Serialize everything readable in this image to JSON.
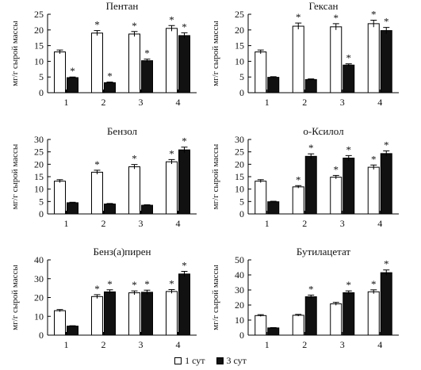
{
  "chart_data": [
    {
      "type": "bar",
      "title": "Пентан",
      "ylabel": "мг/г сырой массы",
      "ylim": [
        0,
        25
      ],
      "yticks": [
        0,
        5,
        10,
        15,
        20,
        25
      ],
      "categories": [
        "1",
        "2",
        "3",
        "4"
      ],
      "series": [
        {
          "name": "1 сут",
          "values": [
            13,
            19,
            18.7,
            20.5
          ],
          "errors": [
            0.6,
            0.8,
            0.8,
            0.9
          ],
          "marked": [
            false,
            true,
            true,
            true
          ]
        },
        {
          "name": "3 сут",
          "values": [
            4.8,
            3.2,
            10.2,
            18.2
          ],
          "errors": [
            0.2,
            0.2,
            0.5,
            0.9
          ],
          "marked": [
            true,
            true,
            true,
            true
          ]
        }
      ]
    },
    {
      "type": "bar",
      "title": "Гексан",
      "ylabel": "мг/г сырой массы",
      "ylim": [
        0,
        25
      ],
      "yticks": [
        0,
        5,
        10,
        15,
        20,
        25
      ],
      "categories": [
        "1",
        "2",
        "3",
        "4"
      ],
      "series": [
        {
          "name": "1 сут",
          "values": [
            13,
            21.2,
            21,
            22
          ],
          "errors": [
            0.6,
            1.0,
            1.0,
            1.1
          ],
          "marked": [
            false,
            true,
            true,
            true
          ]
        },
        {
          "name": "3 сут",
          "values": [
            4.9,
            4.2,
            8.8,
            19.8
          ],
          "errors": [
            0.2,
            0.2,
            0.4,
            1.0
          ],
          "marked": [
            false,
            false,
            true,
            true
          ]
        }
      ]
    },
    {
      "type": "bar",
      "title": "Бензол",
      "ylabel": "мг/г сырой массы",
      "ylim": [
        0,
        30
      ],
      "yticks": [
        0,
        5,
        10,
        15,
        20,
        25,
        30
      ],
      "categories": [
        "1",
        "2",
        "3",
        "4"
      ],
      "series": [
        {
          "name": "1 сут",
          "values": [
            13.2,
            16.8,
            19,
            21
          ],
          "errors": [
            0.6,
            0.8,
            0.9,
            0.9
          ],
          "marked": [
            false,
            true,
            true,
            true
          ]
        },
        {
          "name": "3 сут",
          "values": [
            4.5,
            4,
            3.5,
            25.8
          ],
          "errors": [
            0.2,
            0.2,
            0.2,
            1.1
          ],
          "marked": [
            false,
            false,
            false,
            true
          ]
        }
      ]
    },
    {
      "type": "bar",
      "title": "о-Ксилол",
      "ylabel": "мг/г сырой массы",
      "ylim": [
        0,
        30
      ],
      "yticks": [
        0,
        5,
        10,
        15,
        20,
        25,
        30
      ],
      "categories": [
        "1",
        "2",
        "3",
        "4"
      ],
      "series": [
        {
          "name": "1 сут",
          "values": [
            13.2,
            10.9,
            14.8,
            18.8
          ],
          "errors": [
            0.6,
            0.5,
            0.7,
            0.9
          ],
          "marked": [
            false,
            true,
            true,
            true
          ]
        },
        {
          "name": "3 сут",
          "values": [
            4.9,
            23.2,
            22.5,
            24.3
          ],
          "errors": [
            0.2,
            1.0,
            1.0,
            1.1
          ],
          "marked": [
            false,
            true,
            true,
            true
          ]
        }
      ]
    },
    {
      "type": "bar",
      "title": "Бенз(а)пирен",
      "ylabel": "мг/г сырой массы",
      "ylim": [
        0,
        40
      ],
      "yticks": [
        0,
        10,
        20,
        30,
        40
      ],
      "categories": [
        "1",
        "2",
        "3",
        "4"
      ],
      "series": [
        {
          "name": "1 сут",
          "values": [
            13,
            20.5,
            22.5,
            23.2
          ],
          "errors": [
            0.6,
            1.0,
            1.0,
            1.0
          ],
          "marked": [
            false,
            true,
            true,
            true
          ]
        },
        {
          "name": "3 сут",
          "values": [
            4.8,
            23,
            22.8,
            32.5
          ],
          "errors": [
            0.2,
            1.1,
            1.1,
            1.4
          ],
          "marked": [
            false,
            true,
            true,
            true
          ]
        }
      ]
    },
    {
      "type": "bar",
      "title": "Бутилацетат",
      "ylabel": "мг/г сырой массы",
      "ylim": [
        0,
        50
      ],
      "yticks": [
        0,
        10,
        20,
        30,
        40,
        50
      ],
      "categories": [
        "1",
        "2",
        "3",
        "4"
      ],
      "series": [
        {
          "name": "1 сут",
          "values": [
            13,
            13.2,
            20.8,
            28.8
          ],
          "errors": [
            0.6,
            0.6,
            1.0,
            1.3
          ],
          "marked": [
            false,
            false,
            false,
            true
          ]
        },
        {
          "name": "3 сут",
          "values": [
            4.8,
            25.5,
            28.2,
            41.5
          ],
          "errors": [
            0.2,
            1.1,
            1.2,
            1.8
          ],
          "marked": [
            false,
            true,
            true,
            true
          ]
        }
      ]
    }
  ],
  "legend": {
    "items": [
      {
        "label": "1 сут",
        "color": "#ffffff"
      },
      {
        "label": "3 сут",
        "color": "#111111"
      }
    ]
  },
  "marker_symbol": "*"
}
